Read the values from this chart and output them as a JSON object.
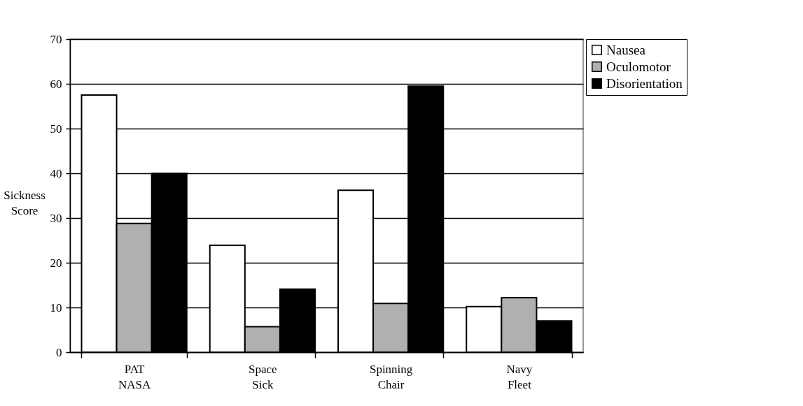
{
  "chart_data": {
    "type": "bar",
    "ylabel": "Sickness Score",
    "categories": [
      "PAT NASA",
      "Space Sick",
      "Spinning Chair",
      "Navy Fleet"
    ],
    "series": [
      {
        "name": "Nausea",
        "color": "#ffffff",
        "values": [
          57.5,
          23.9,
          36.2,
          10.2
        ]
      },
      {
        "name": "Oculomotor",
        "color": "#b0b0b0",
        "values": [
          28.8,
          5.7,
          10.9,
          12.2
        ]
      },
      {
        "name": "Disorientation",
        "color": "#000000",
        "values": [
          40,
          14.1,
          59.5,
          7
        ]
      }
    ],
    "ylim": [
      0,
      70
    ],
    "yticks": [
      0,
      10,
      20,
      30,
      40,
      50,
      60,
      70
    ],
    "grid": "y",
    "legend": "right"
  }
}
